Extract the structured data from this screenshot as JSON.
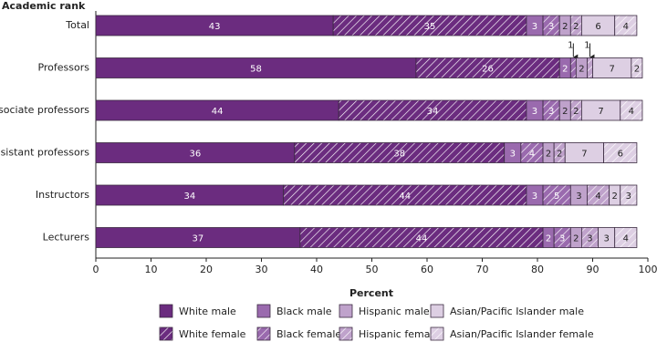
{
  "chart_data": {
    "type": "stacked-bar-horizontal",
    "y_label": "Academic rank",
    "x_label": "Percent",
    "categories": [
      "Total",
      "Professors",
      "Associate professors",
      "Assistant professors",
      "Instructors",
      "Lecturers"
    ],
    "series": [
      {
        "name": "White male",
        "color": "#6b2c7f",
        "hatch": false,
        "label_color": "#ffffff",
        "values": [
          43,
          58,
          44,
          36,
          34,
          37
        ]
      },
      {
        "name": "White female",
        "color": "#6b2c7f",
        "hatch": true,
        "label_color": "#ffffff",
        "values": [
          35,
          26,
          34,
          38,
          44,
          44
        ]
      },
      {
        "name": "Black male",
        "color": "#9a6aae",
        "hatch": false,
        "label_color": "#ffffff",
        "values": [
          3,
          2,
          3,
          3,
          3,
          2
        ]
      },
      {
        "name": "Black female",
        "color": "#9a6aae",
        "hatch": true,
        "label_color": "#ffffff",
        "values": [
          3,
          1,
          3,
          4,
          5,
          3
        ]
      },
      {
        "name": "Hispanic male",
        "color": "#bfa2cb",
        "hatch": false,
        "label_color": "#222222",
        "values": [
          2,
          2,
          2,
          2,
          3,
          2
        ]
      },
      {
        "name": "Hispanic female",
        "color": "#bfa2cb",
        "hatch": true,
        "label_color": "#222222",
        "values": [
          2,
          1,
          2,
          2,
          4,
          3
        ]
      },
      {
        "name": "Asian/Pacific Islander male",
        "color": "#ddcfe3",
        "hatch": false,
        "label_color": "#222222",
        "values": [
          6,
          7,
          7,
          7,
          2,
          3
        ]
      },
      {
        "name": "Asian/Pacific Islander female",
        "color": "#ddcfe3",
        "hatch": true,
        "label_color": "#222222",
        "values": [
          4,
          2,
          4,
          6,
          3,
          4
        ]
      }
    ],
    "xlim": [
      0,
      100
    ],
    "xticks": [
      0,
      10,
      20,
      30,
      40,
      50,
      60,
      70,
      80,
      90,
      100
    ],
    "grid": false
  }
}
